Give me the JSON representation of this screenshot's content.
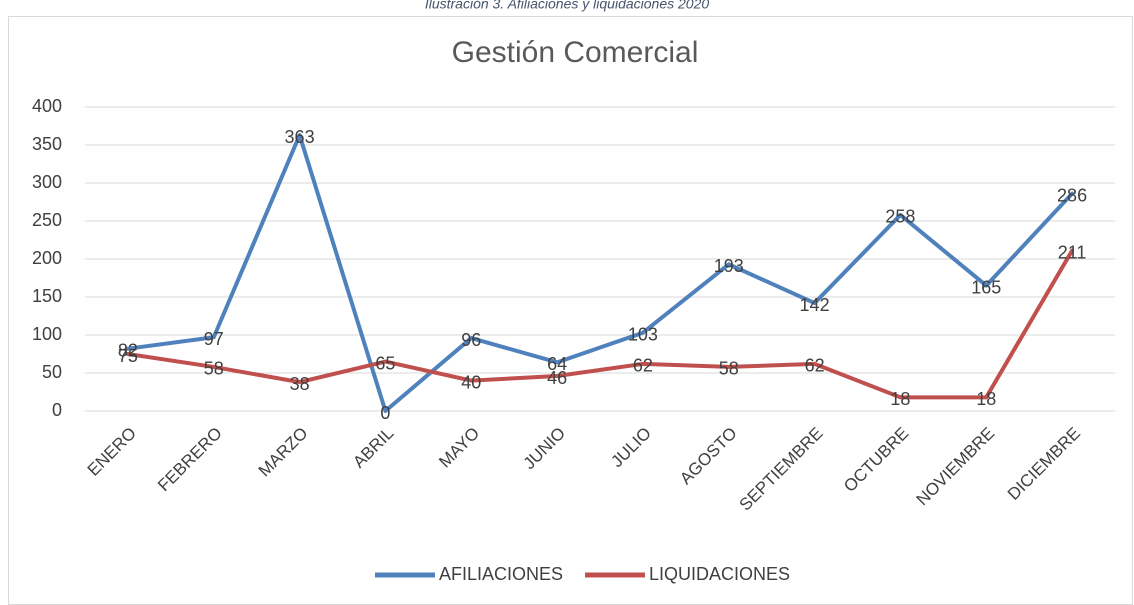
{
  "chart_data": {
    "type": "line",
    "caption": "Ilustración 3. Afiliaciones y liquidaciones 2020",
    "title": "Gestión Comercial",
    "categories": [
      "ENERO",
      "FEBRERO",
      "MARZO",
      "ABRIL",
      "MAYO",
      "JUNIO",
      "JULIO",
      "AGOSTO",
      "SEPTIEMBRE",
      "OCTUBRE",
      "NOVIEMBRE",
      "DICIEMBRE"
    ],
    "series": [
      {
        "name": "AFILIACIONES",
        "color": "#4f81bd",
        "values": [
          82,
          97,
          363,
          0,
          96,
          64,
          103,
          193,
          142,
          258,
          165,
          286
        ]
      },
      {
        "name": "LIQUIDACIONES",
        "color": "#c0504d",
        "values": [
          75,
          58,
          38,
          65,
          40,
          46,
          62,
          58,
          62,
          18,
          18,
          211
        ]
      }
    ],
    "ylim": [
      0,
      400
    ],
    "yticks": [
      0,
      50,
      100,
      150,
      200,
      250,
      300,
      350,
      400
    ],
    "grid": true,
    "legend": "bottom"
  }
}
